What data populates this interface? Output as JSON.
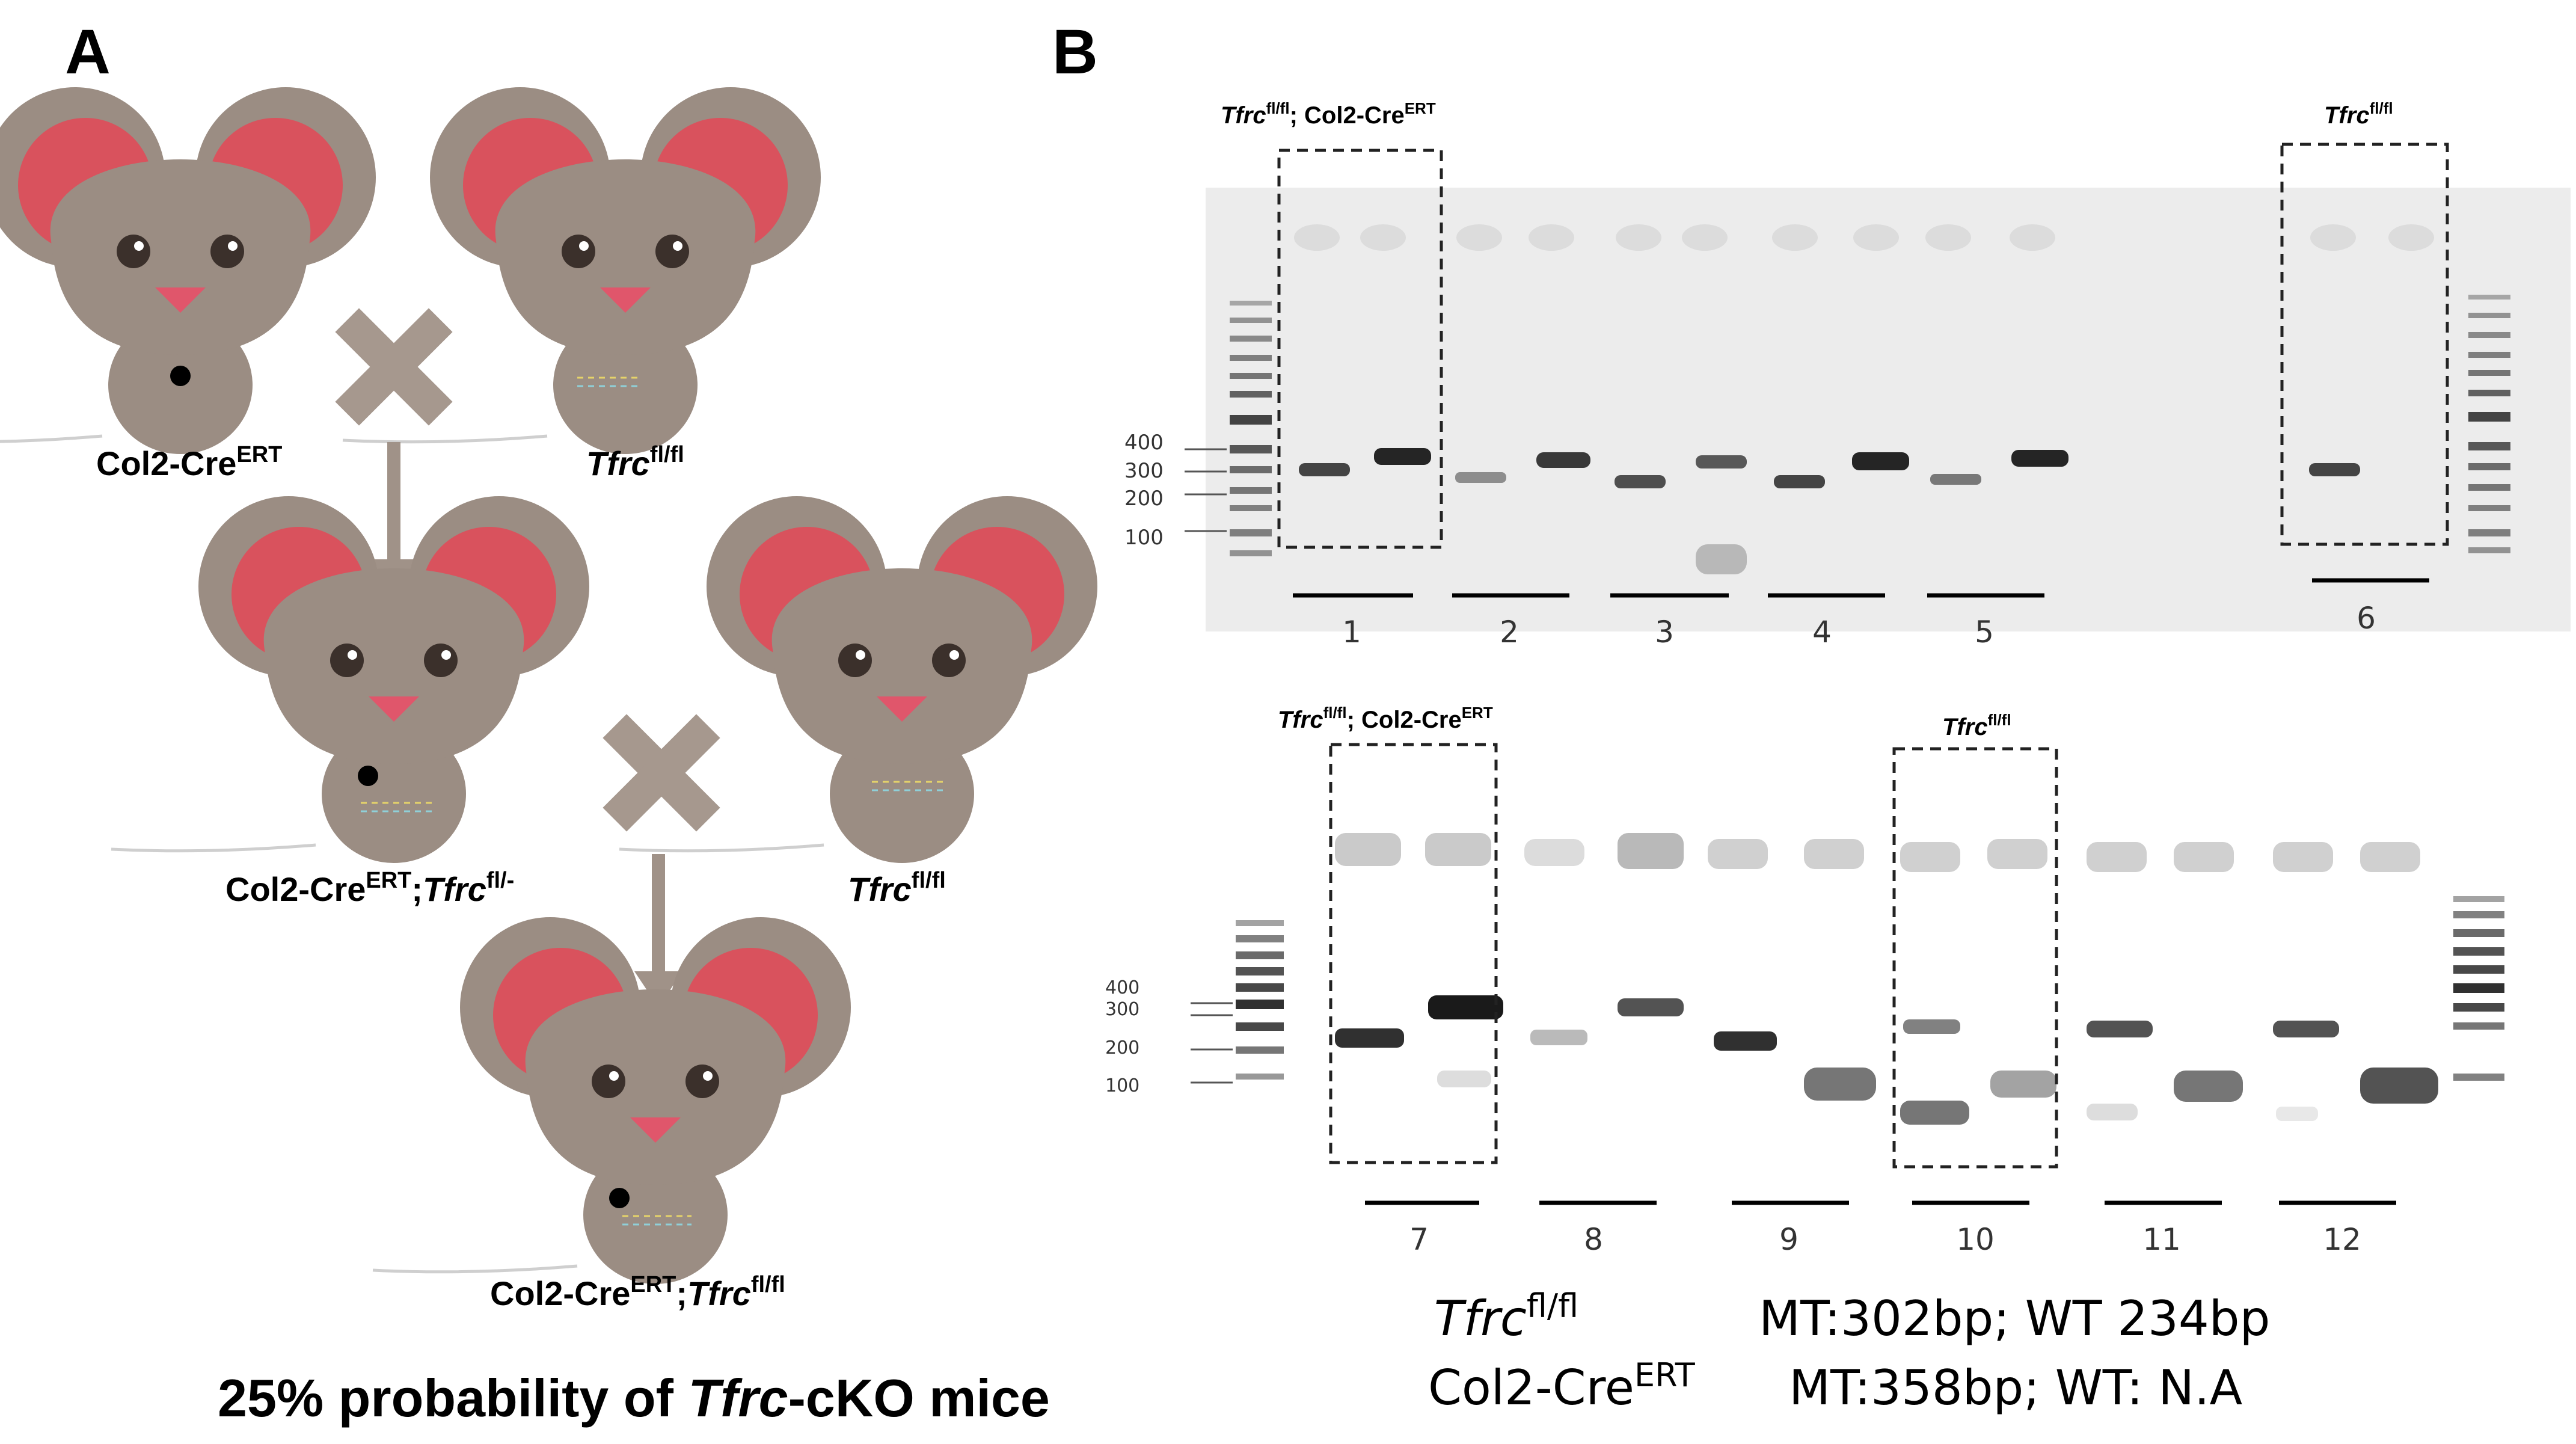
{
  "panels": {
    "a": {
      "letter": "A",
      "cross1": {
        "left_base": "Col2-Cre",
        "left_sup": "ERT",
        "right_base": "Tfrc",
        "right_sup": "fl/fl"
      },
      "cross2": {
        "left_base": "Col2-Cre",
        "left_sup": "ERT",
        "left_sep": ";",
        "left_base2": "Tfrc",
        "left_sup2": "fl/-",
        "right_base": "Tfrc",
        "right_sup": "fl/fl"
      },
      "offspring": {
        "base": "Col2-Cre",
        "sup": "ERT",
        "sep": ";",
        "base2": "Tfrc",
        "sup2": "fl/fl"
      },
      "footer": {
        "pre": "25% probability of ",
        "ital": "Tfrc",
        "post": "-cKO mice"
      }
    },
    "b": {
      "letter": "B",
      "gel1": {
        "ladder_labels": [
          "400",
          "300",
          "200",
          "100"
        ],
        "box1": {
          "base": "Tfrc",
          "sup": "fl/fl",
          "sep": "; Col2-Cre",
          "sup2": "ERT"
        },
        "box2": {
          "base": "Tfrc",
          "sup": "fl/fl"
        },
        "lanes": [
          "1",
          "2",
          "3",
          "4",
          "5",
          "6"
        ]
      },
      "gel2": {
        "ladder_labels": [
          "400",
          "300",
          "200",
          "100"
        ],
        "box1": {
          "base": "Tfrc",
          "sup": "fl/fl",
          "sep": "; Col2-Cre",
          "sup2": "ERT"
        },
        "box2": {
          "base": "Tfrc",
          "sup": "fl/fl"
        },
        "lanes": [
          "7",
          "8",
          "9",
          "10",
          "11",
          "12"
        ]
      },
      "legend": {
        "row1": {
          "base": "Tfrc",
          "sup": "fl/fl",
          "value": "MT:302bp; WT 234bp"
        },
        "row2": {
          "base": "Col2-Cre",
          "sup": "ERT",
          "value": "MT:358bp; WT: N.A"
        }
      }
    }
  },
  "colors": {
    "mouse_body": "#9b8d83",
    "mouse_ear_inner": "#d9525d",
    "mouse_nose": "#e0566b",
    "cross_mark": "#a6988e",
    "arrow": "#a09288",
    "gel_bg": "#ececec",
    "band": "#1a1a1a"
  }
}
